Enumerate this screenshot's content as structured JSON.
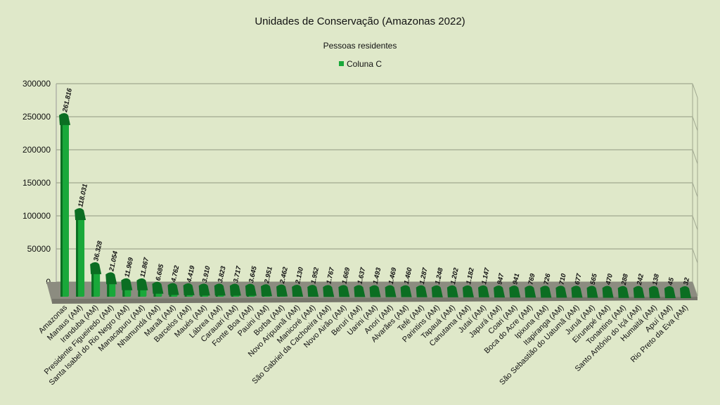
{
  "chart_data": {
    "type": "bar",
    "title": "Unidades de Conservação (Amazonas 2022)",
    "subtitle": "Pessoas residentes",
    "legend": {
      "label": "Coluna C",
      "placement": "top-center"
    },
    "xlabel": "",
    "ylabel": "",
    "ylim": [
      0,
      300000
    ],
    "yticks": [
      "0",
      "50000",
      "100000",
      "150000",
      "200000",
      "250000",
      "300000"
    ],
    "grid": true,
    "colors": {
      "bar": "#19a83a",
      "bar_dark": "#0b6e22",
      "floor": "#8c8c80",
      "background": "#dfe8c9"
    },
    "categories": [
      "Amazonas",
      "Manaus (AM)",
      "Iranduba (AM)",
      "Presidente Figueiredo (AM)",
      "Santa Isabel do Rio Negro (AM)",
      "Manacapuru (AM)",
      "Nhamundá (AM)",
      "Maraã (AM)",
      "Barcelos (AM)",
      "Maués (AM)",
      "Lábrea (AM)",
      "Carauari (AM)",
      "Fonte Boa (AM)",
      "Pauini (AM)",
      "Borba (AM)",
      "Novo Aripuanã (AM)",
      "Manicoré (AM)",
      "São Gabriel da Cachoeira (AM)",
      "Novo Airão (AM)",
      "Beruri (AM)",
      "Uarini (AM)",
      "Anori (AM)",
      "Alvarães (AM)",
      "Tefé (AM)",
      "Parintins (AM)",
      "Tapauá (AM)",
      "Canutama (AM)",
      "Jutaí (AM)",
      "Japurá (AM)",
      "Coari (AM)",
      "Boca do Acre (AM)",
      "Ipixuna (AM)",
      "Itapiranga (AM)",
      "São Sebastião do Uatumã (AM)",
      "Juruá (AM)",
      "Eirunepé (AM)",
      "Tonantins (AM)",
      "Santo Antônio do Içá (AM)",
      "Humaitá (AM)",
      "Apuí (AM)",
      "Rio Preto da Eva (AM)"
    ],
    "values": [
      261816,
      118031,
      36328,
      21054,
      11969,
      11867,
      6685,
      4762,
      4419,
      3910,
      3823,
      3717,
      3645,
      2951,
      2462,
      2130,
      1952,
      1767,
      1669,
      1637,
      1493,
      1469,
      1460,
      1287,
      1248,
      1202,
      1182,
      1147,
      947,
      941,
      769,
      726,
      710,
      677,
      565,
      470,
      288,
      242,
      138,
      45,
      32
    ],
    "value_labels": [
      "261.816",
      "118.031",
      "36.328",
      "21.054",
      "11.969",
      "11.867",
      "6.685",
      "4.762",
      "4.419",
      "3.910",
      "3.823",
      "3.717",
      "3.645",
      "2.951",
      "2.462",
      "2.130",
      "1.952",
      "1.767",
      "1.669",
      "1.637",
      "1.493",
      "1.469",
      "1.460",
      "1.287",
      "1.248",
      "1.202",
      "1.182",
      "1.147",
      "947",
      "941",
      "769",
      "726",
      "710",
      "677",
      "565",
      "470",
      "288",
      "242",
      "138",
      "45",
      "32"
    ]
  }
}
